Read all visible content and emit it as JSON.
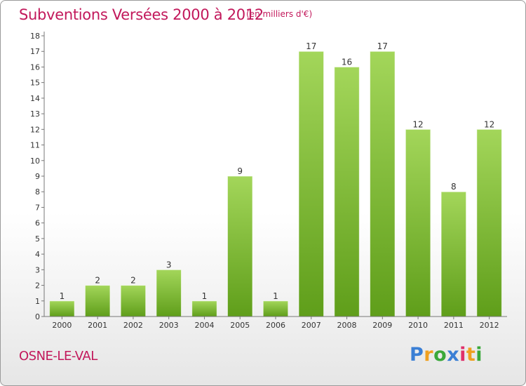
{
  "title": "Subventions Versées 2000 à 2012",
  "subtitle": "(en milliers d'€)",
  "commune": "OSNE-LE-VAL",
  "logo": {
    "letters": [
      "P",
      "r",
      "o",
      "x",
      "i",
      "t",
      "i"
    ],
    "colors": [
      "#3a7fd5",
      "#f0a020",
      "#3aa83a",
      "#3a7fd5",
      "#e0306a",
      "#f0a020",
      "#3aa83a"
    ]
  },
  "colors": {
    "bar_light": "#a3d65a",
    "bar_dark": "#5f9e1a",
    "text": "#333333",
    "brand": "#c2185b"
  },
  "chart_data": {
    "type": "bar",
    "title": "Subventions Versées 2000 à 2012",
    "subtitle": "(en milliers d'€)",
    "categories": [
      "2000",
      "2001",
      "2002",
      "2003",
      "2004",
      "2005",
      "2006",
      "2007",
      "2008",
      "2009",
      "2010",
      "2011",
      "2012"
    ],
    "values": [
      1,
      2,
      2,
      3,
      1,
      9,
      1,
      17,
      16,
      17,
      12,
      8,
      12
    ],
    "ylim": [
      0,
      18
    ],
    "yticks": [
      0,
      1,
      2,
      3,
      4,
      5,
      6,
      7,
      8,
      9,
      10,
      11,
      12,
      13,
      14,
      15,
      16,
      17,
      18
    ],
    "grid": false,
    "data_labels": true
  }
}
